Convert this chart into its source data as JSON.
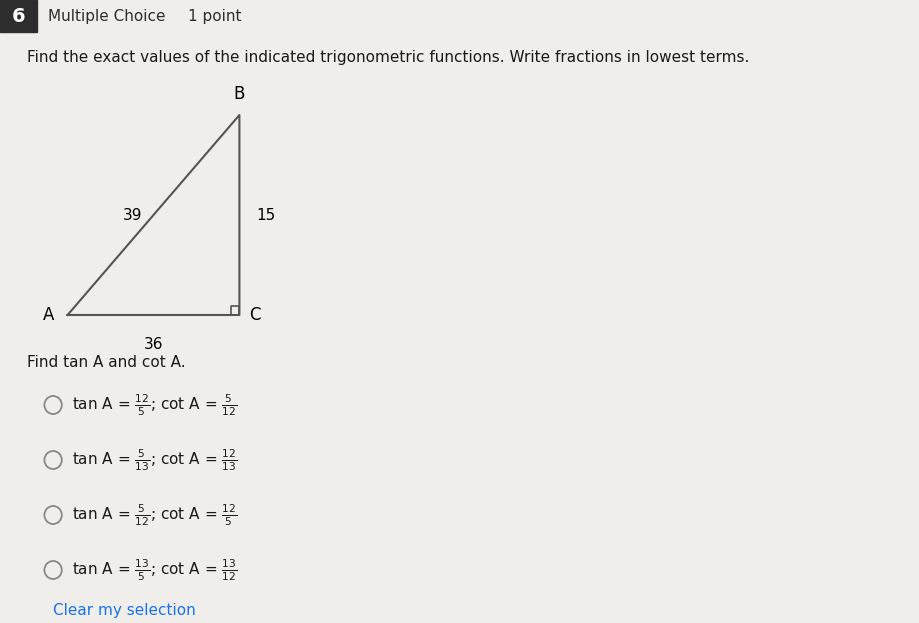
{
  "question_number": "6",
  "question_type": "Multiple Choice",
  "points": "1 point",
  "title": "Find the exact values of the indicated trigonometric functions. Write fractions in lowest terms.",
  "triangle": {
    "side_AB": "39",
    "side_BC": "15",
    "side_AC": "36"
  },
  "sub_question": "Find tan A and cot A.",
  "options_tan": [
    "\\frac{12}{5}",
    "\\frac{5}{13}",
    "\\frac{5}{12}",
    "\\frac{13}{5}"
  ],
  "options_cot": [
    "\\frac{5}{12}",
    "\\frac{12}{13}",
    "\\frac{12}{5}",
    "\\frac{13}{12}"
  ],
  "clear_text": "Clear my selection",
  "bg_color": "#f0eeeb",
  "text_color": "#1a1a1a",
  "num_box_color": "#2d2d2d",
  "header_text_color": "#2d2d2d",
  "circle_color": "#888888",
  "clear_color": "#1a73e8"
}
